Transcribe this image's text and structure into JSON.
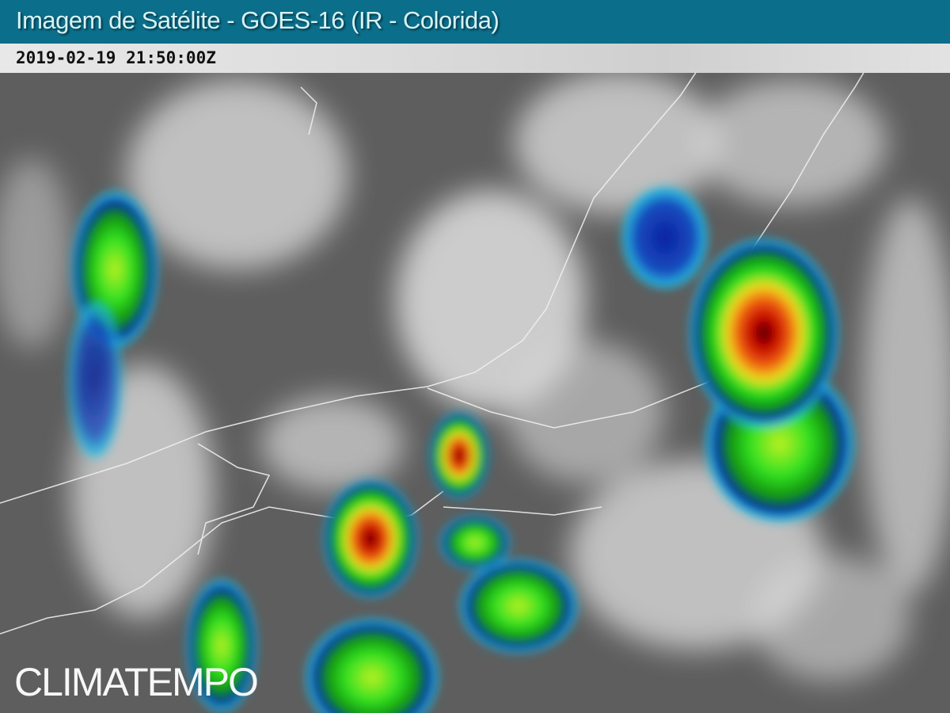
{
  "header": {
    "title": "Imagem de Satélite - GOES-16 (IR - Colorida)"
  },
  "timestamp": "2019-02-19 21:50:00Z",
  "logo": "CLIMATEMPO",
  "colors": {
    "header": "#0b6e8a",
    "cold_top_red": "#e01010",
    "cold_top_yellow": "#f0e020",
    "green": "#20e020",
    "blue": "#0a1fa0",
    "cyan": "#20d0e8"
  }
}
